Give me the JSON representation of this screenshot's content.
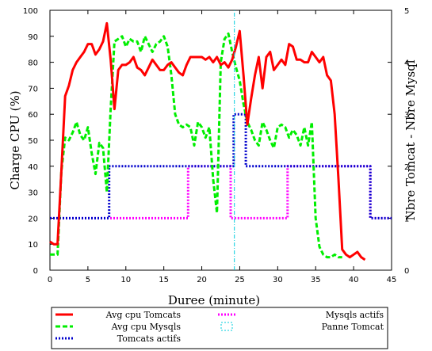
{
  "chart_data": {
    "type": "line",
    "xlabel": "Duree (minute)",
    "ylabel": "Charge CPU (%)",
    "y2label": "Nbre Tomcat - Nbre Mysql",
    "xlim": [
      0,
      45
    ],
    "ylim": [
      0,
      100
    ],
    "y2lim": [
      0,
      5
    ],
    "x_ticks": [
      "0",
      "5",
      "10",
      "15",
      "20",
      "25",
      "30",
      "35",
      "40",
      "45"
    ],
    "y_ticks": [
      "0",
      "10",
      "20",
      "30",
      "40",
      "50",
      "60",
      "70",
      "80",
      "90",
      "100"
    ],
    "y2_ticks": [
      "0",
      "1",
      "2",
      "3",
      "4",
      "5"
    ],
    "grid": false,
    "legend_position": "bottom",
    "series": [
      {
        "name": "Avg cpu Tomcats",
        "axis": "left",
        "color": "#ff0000",
        "style": "solid",
        "points": [
          [
            0,
            11
          ],
          [
            0.5,
            10
          ],
          [
            1,
            10
          ],
          [
            1.5,
            38
          ],
          [
            2,
            67
          ],
          [
            2.5,
            71
          ],
          [
            3,
            77
          ],
          [
            3.5,
            80
          ],
          [
            4,
            82
          ],
          [
            4.5,
            84
          ],
          [
            5,
            87
          ],
          [
            5.5,
            87
          ],
          [
            6,
            83
          ],
          [
            6.5,
            85
          ],
          [
            7,
            88
          ],
          [
            7.5,
            95
          ],
          [
            8,
            81
          ],
          [
            8.5,
            62
          ],
          [
            9,
            77
          ],
          [
            9.5,
            79
          ],
          [
            10,
            79
          ],
          [
            10.5,
            80
          ],
          [
            11,
            82
          ],
          [
            11.5,
            78
          ],
          [
            12,
            77
          ],
          [
            12.5,
            75
          ],
          [
            13,
            78
          ],
          [
            13.5,
            81
          ],
          [
            14,
            79
          ],
          [
            14.5,
            77
          ],
          [
            15,
            77
          ],
          [
            15.5,
            79
          ],
          [
            16,
            80
          ],
          [
            16.5,
            78
          ],
          [
            17,
            76
          ],
          [
            17.5,
            75
          ],
          [
            18,
            79
          ],
          [
            18.5,
            82
          ],
          [
            19,
            82
          ],
          [
            19.5,
            82
          ],
          [
            20,
            82
          ],
          [
            20.5,
            81
          ],
          [
            21,
            82
          ],
          [
            21.5,
            80
          ],
          [
            22,
            82
          ],
          [
            22.5,
            79
          ],
          [
            23,
            80
          ],
          [
            23.5,
            78
          ],
          [
            24,
            81
          ],
          [
            24.5,
            86
          ],
          [
            25,
            92
          ],
          [
            25.5,
            75
          ],
          [
            26,
            56
          ],
          [
            26.5,
            66
          ],
          [
            27,
            75
          ],
          [
            27.5,
            82
          ],
          [
            28,
            70
          ],
          [
            28.5,
            82
          ],
          [
            29,
            84
          ],
          [
            29.5,
            77
          ],
          [
            30,
            79
          ],
          [
            30.5,
            81
          ],
          [
            31,
            79
          ],
          [
            31.5,
            87
          ],
          [
            32,
            86
          ],
          [
            32.5,
            81
          ],
          [
            33,
            81
          ],
          [
            33.5,
            80
          ],
          [
            34,
            80
          ],
          [
            34.5,
            84
          ],
          [
            35,
            82
          ],
          [
            35.5,
            80
          ],
          [
            36,
            82
          ],
          [
            36.5,
            75
          ],
          [
            37,
            73
          ],
          [
            37.5,
            60
          ],
          [
            38,
            35
          ],
          [
            38.5,
            8
          ],
          [
            39,
            6
          ],
          [
            39.5,
            5
          ],
          [
            40,
            6
          ],
          [
            40.5,
            7
          ],
          [
            41,
            5
          ],
          [
            41.5,
            4
          ]
        ]
      },
      {
        "name": "Avg cpu Mysqls",
        "axis": "left",
        "color": "#00ee00",
        "style": "dashed",
        "points": [
          [
            0,
            6
          ],
          [
            0.5,
            6
          ],
          [
            1,
            6
          ],
          [
            1.5,
            38
          ],
          [
            2,
            51
          ],
          [
            2.5,
            50
          ],
          [
            3,
            53
          ],
          [
            3.5,
            57
          ],
          [
            4,
            52
          ],
          [
            4.5,
            50
          ],
          [
            5,
            55
          ],
          [
            5.5,
            45
          ],
          [
            6,
            37
          ],
          [
            6.5,
            49
          ],
          [
            7,
            47
          ],
          [
            7.5,
            30
          ],
          [
            8,
            62
          ],
          [
            8.5,
            88
          ],
          [
            9,
            89
          ],
          [
            9.5,
            90
          ],
          [
            10,
            86
          ],
          [
            10.5,
            89
          ],
          [
            11,
            88
          ],
          [
            11.5,
            88
          ],
          [
            12,
            84
          ],
          [
            12.5,
            90
          ],
          [
            13,
            87
          ],
          [
            13.5,
            84
          ],
          [
            14,
            87
          ],
          [
            14.5,
            88
          ],
          [
            15,
            90
          ],
          [
            15.5,
            86
          ],
          [
            16,
            75
          ],
          [
            16.5,
            60
          ],
          [
            17,
            56
          ],
          [
            17.5,
            55
          ],
          [
            18,
            56
          ],
          [
            18.5,
            55
          ],
          [
            19,
            48
          ],
          [
            19.5,
            57
          ],
          [
            20,
            55
          ],
          [
            20.5,
            51
          ],
          [
            21,
            55
          ],
          [
            21.5,
            35
          ],
          [
            22,
            22
          ],
          [
            22.5,
            80
          ],
          [
            23,
            89
          ],
          [
            23.5,
            91
          ],
          [
            24,
            84
          ],
          [
            24.5,
            78
          ],
          [
            25,
            73
          ],
          [
            25.5,
            64
          ],
          [
            26,
            57
          ],
          [
            26.5,
            54
          ],
          [
            27,
            50
          ],
          [
            27.5,
            48
          ],
          [
            28,
            57
          ],
          [
            28.5,
            54
          ],
          [
            29,
            50
          ],
          [
            29.5,
            47
          ],
          [
            30,
            55
          ],
          [
            30.5,
            56
          ],
          [
            31,
            55
          ],
          [
            31.5,
            51
          ],
          [
            32,
            54
          ],
          [
            32.5,
            52
          ],
          [
            33,
            48
          ],
          [
            33.5,
            55
          ],
          [
            34,
            48
          ],
          [
            34.5,
            57
          ],
          [
            35,
            20
          ],
          [
            35.5,
            9
          ],
          [
            36,
            6
          ],
          [
            36.5,
            5
          ],
          [
            37,
            5
          ],
          [
            37.5,
            6
          ],
          [
            38,
            5
          ],
          [
            38.5,
            5
          ]
        ]
      },
      {
        "name": "Tomcats actifs",
        "axis": "right",
        "color": "#0000cc",
        "style": "dotted",
        "points": [
          [
            0,
            1
          ],
          [
            7.8,
            1
          ],
          [
            7.8,
            2
          ],
          [
            24.2,
            2
          ],
          [
            24.2,
            3
          ],
          [
            25.8,
            3
          ],
          [
            25.8,
            2
          ],
          [
            42.2,
            2
          ],
          [
            42.2,
            1
          ],
          [
            45,
            1
          ]
        ]
      },
      {
        "name": "Mysqls actifs",
        "axis": "right",
        "color": "#ff00ff",
        "style": "dotted",
        "points": [
          [
            0,
            1
          ],
          [
            18.2,
            1
          ],
          [
            18.2,
            2
          ],
          [
            23.8,
            2
          ],
          [
            23.8,
            1
          ],
          [
            31.3,
            1
          ],
          [
            31.3,
            2
          ],
          [
            42.2,
            2
          ],
          [
            42.2,
            1
          ],
          [
            45,
            1
          ]
        ]
      },
      {
        "name": "Panne Tomcat",
        "axis": "left",
        "color": "#00ccdd",
        "style": "dashdot",
        "points": [
          [
            24.3,
            0
          ],
          [
            24.3,
            100
          ]
        ]
      }
    ],
    "legend": [
      "Avg cpu Tomcats",
      "Mysqls actifs",
      "Avg cpu Mysqls",
      "Panne Tomcat",
      "Tomcats actifs"
    ]
  }
}
